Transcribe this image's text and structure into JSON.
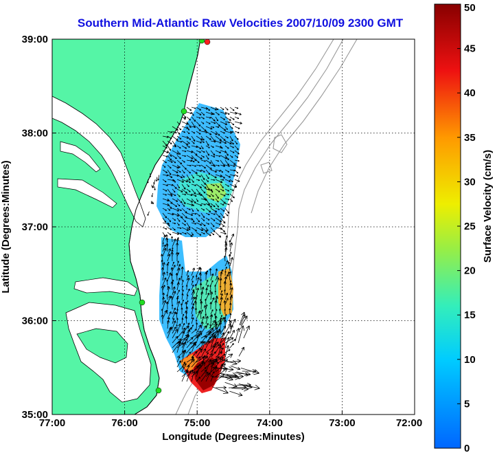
{
  "title": "Southern Mid-Atlantic Raw Velocities 2007/10/09 2300 GMT",
  "x_axis": {
    "label": "Longitude (Degrees:Minutes)",
    "ticks": [
      "77:00",
      "76:00",
      "75:00",
      "74:00",
      "73:00",
      "72:00"
    ]
  },
  "y_axis": {
    "label": "Latitude (Degrees:Minutes)",
    "ticks": [
      "39:00",
      "38:00",
      "37:00",
      "36:00",
      "35:00"
    ]
  },
  "colorbar": {
    "label": "Surface Velocity (cm/s)",
    "min": 0,
    "max": 50,
    "ticks": [
      "0",
      "5",
      "10",
      "15",
      "20",
      "25",
      "30",
      "35",
      "40",
      "45",
      "50"
    ]
  },
  "colors": {
    "land": "#55f5a6",
    "water": "#ffffff",
    "bathymetry": "#999999",
    "coastline": "#000000",
    "grid": "#000000",
    "title": "#1010e0"
  },
  "markers": [
    {
      "name": "station",
      "color": "#22dd22"
    },
    {
      "name": "station",
      "color": "#22dd22"
    },
    {
      "name": "station",
      "color": "#22dd22"
    },
    {
      "name": "station",
      "color": "#22dd22"
    },
    {
      "name": "station",
      "color": "#ff2020"
    }
  ]
}
